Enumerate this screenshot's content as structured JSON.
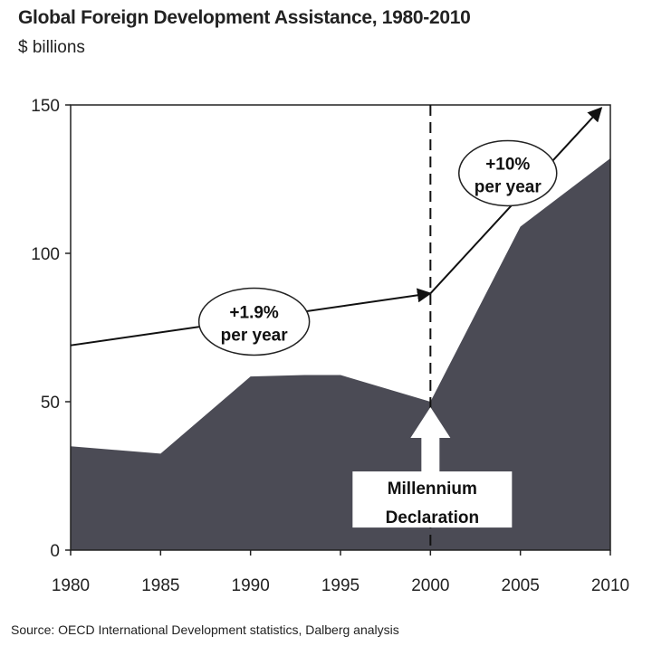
{
  "chart_data": {
    "type": "area",
    "title": "Global Foreign Development Assistance, 1980-2010",
    "subtitle": "$ billions",
    "xlabel": "",
    "ylabel": "",
    "xlim": [
      1980,
      2010
    ],
    "ylim": [
      0,
      150
    ],
    "x_ticks": [
      "1980",
      "1985",
      "1990",
      "1995",
      "2000",
      "2005",
      "2010"
    ],
    "y_ticks": [
      "0",
      "50",
      "100",
      "150"
    ],
    "grid": false,
    "series": [
      {
        "x": [
          1980,
          1985,
          1990,
          1993,
          1995,
          2000,
          2005,
          2010
        ],
        "values": [
          35,
          32.5,
          58.5,
          59,
          59,
          50,
          109,
          132
        ],
        "color": "#4b4b55"
      }
    ],
    "trend_lines": [
      {
        "x": [
          1980,
          2000
        ],
        "values": [
          69,
          86.5
        ]
      },
      {
        "x": [
          2000,
          2009.5
        ],
        "values": [
          86.5,
          149
        ]
      }
    ],
    "vline_x": 2000,
    "annotations": {
      "growth_1": [
        "+1.9%",
        "per year"
      ],
      "growth_2": [
        "+10%",
        "per year"
      ],
      "event": [
        "Millennium",
        "Declaration"
      ]
    },
    "source": "Source: OECD International Development statistics, Dalberg analysis"
  }
}
